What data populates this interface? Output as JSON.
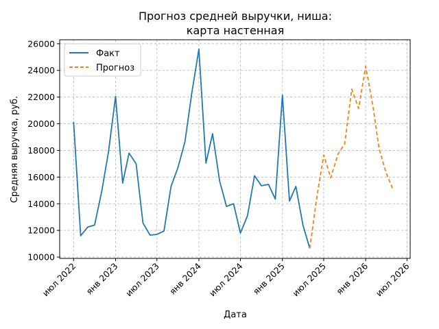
{
  "chart_data": {
    "type": "line",
    "title": [
      "Прогноз средней выручки, ниша:",
      "карта настенная"
    ],
    "xlabel": "Дата",
    "ylabel": "Средняя выручка, руб.",
    "xlim": [
      "2022-05-01",
      "2026-07-15"
    ],
    "ylim": [
      9900,
      26300
    ],
    "grid": true,
    "legend_position": "top-left",
    "x_ticks": [
      {
        "date": "2022-07-01",
        "label": "июл 2022"
      },
      {
        "date": "2023-01-01",
        "label": "янв 2023"
      },
      {
        "date": "2023-07-01",
        "label": "июл 2023"
      },
      {
        "date": "2024-01-01",
        "label": "янв 2024"
      },
      {
        "date": "2024-07-01",
        "label": "июл 2024"
      },
      {
        "date": "2025-01-01",
        "label": "янв 2025"
      },
      {
        "date": "2025-07-01",
        "label": "июл 2025"
      },
      {
        "date": "2026-01-01",
        "label": "янв 2026"
      },
      {
        "date": "2026-07-01",
        "label": "июл 2026"
      }
    ],
    "y_ticks": [
      10000,
      12000,
      14000,
      16000,
      18000,
      20000,
      22000,
      24000,
      26000
    ],
    "y_tick_labels": [
      "10000",
      "12000",
      "14000",
      "16000",
      "18000",
      "20000",
      "22000",
      "24000",
      "26000"
    ],
    "series": [
      {
        "name": "Факт",
        "color": "#1f77b4",
        "style": "solid",
        "x": [
          "2022-07-01",
          "2022-08-01",
          "2022-09-01",
          "2022-10-01",
          "2022-11-01",
          "2022-12-01",
          "2023-01-01",
          "2023-02-01",
          "2023-03-01",
          "2023-04-01",
          "2023-05-01",
          "2023-06-01",
          "2023-07-01",
          "2023-08-01",
          "2023-09-01",
          "2023-10-01",
          "2023-11-01",
          "2023-12-01",
          "2024-01-01",
          "2024-02-01",
          "2024-03-01",
          "2024-04-01",
          "2024-05-01",
          "2024-06-01",
          "2024-07-01",
          "2024-08-01",
          "2024-09-01",
          "2024-10-01",
          "2024-11-01",
          "2024-12-01",
          "2025-01-01",
          "2025-02-01",
          "2025-03-01",
          "2025-04-01",
          "2025-05-01"
        ],
        "y": [
          20150,
          11600,
          12250,
          12400,
          14900,
          17900,
          22050,
          15550,
          17800,
          17000,
          12550,
          11650,
          11700,
          11950,
          15300,
          16700,
          18650,
          22300,
          25600,
          17050,
          19250,
          15700,
          13800,
          14000,
          11800,
          13100,
          16100,
          15350,
          15450,
          14350,
          22150,
          14200,
          15300,
          12400,
          10650
        ]
      },
      {
        "name": "Прогноз",
        "color": "#ff7f0e",
        "style": "dashed",
        "x": [
          "2025-05-01",
          "2025-06-01",
          "2025-07-01",
          "2025-08-01",
          "2025-09-01",
          "2025-10-01",
          "2025-11-01",
          "2025-12-01",
          "2026-01-01",
          "2026-02-01",
          "2026-03-01",
          "2026-04-01",
          "2026-05-01"
        ],
        "y": [
          10650,
          14500,
          17650,
          15950,
          17700,
          18500,
          22600,
          21150,
          24300,
          21400,
          18100,
          16300,
          15050
        ]
      }
    ]
  }
}
